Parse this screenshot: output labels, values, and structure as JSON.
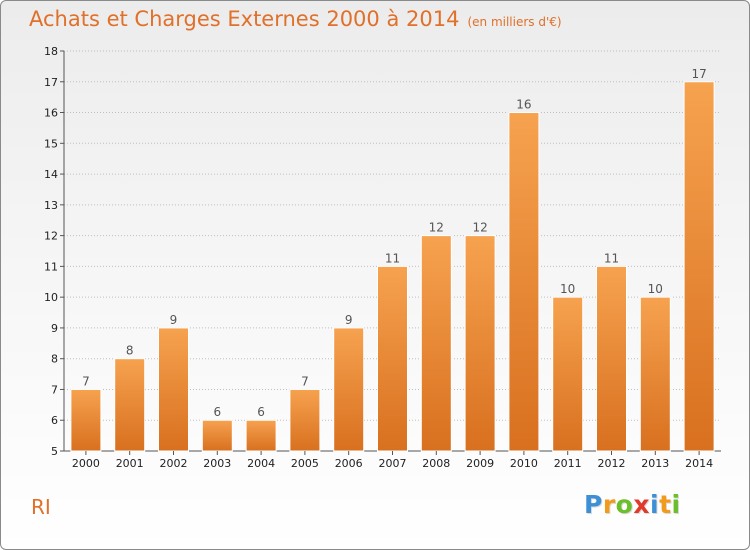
{
  "header": {
    "title": "Achats et Charges Externes 2000 à 2014",
    "subtitle": "(en milliers d'€)"
  },
  "commune": "RI",
  "logo": {
    "letters": [
      "P",
      "r",
      "o",
      "x",
      "i",
      "t",
      "i"
    ],
    "colors": [
      "#3d8fd6",
      "#f29a1a",
      "#6bbf2a",
      "#e23a2a",
      "#3d8fd6",
      "#f29a1a",
      "#6bbf2a"
    ]
  },
  "colors": {
    "accent": "#e0702a",
    "bar_top": "#f6a24f",
    "bar_bottom": "#d8701f",
    "axis": "#555555",
    "grid": "#bfbfbf"
  },
  "chart_data": {
    "type": "bar",
    "title": "Achats et Charges Externes 2000 à 2014",
    "subtitle": "(en milliers d'€)",
    "categories": [
      "2000",
      "2001",
      "2002",
      "2003",
      "2004",
      "2005",
      "2006",
      "2007",
      "2008",
      "2009",
      "2010",
      "2011",
      "2012",
      "2013",
      "2014"
    ],
    "values": [
      7,
      8,
      9,
      6,
      6,
      7,
      9,
      11,
      12,
      12,
      16,
      10,
      11,
      10,
      17
    ],
    "ylim": [
      5,
      18
    ],
    "yticks": [
      5,
      6,
      7,
      8,
      9,
      10,
      11,
      12,
      13,
      14,
      15,
      16,
      17,
      18
    ],
    "grid": true,
    "xlabel": "",
    "ylabel": ""
  }
}
